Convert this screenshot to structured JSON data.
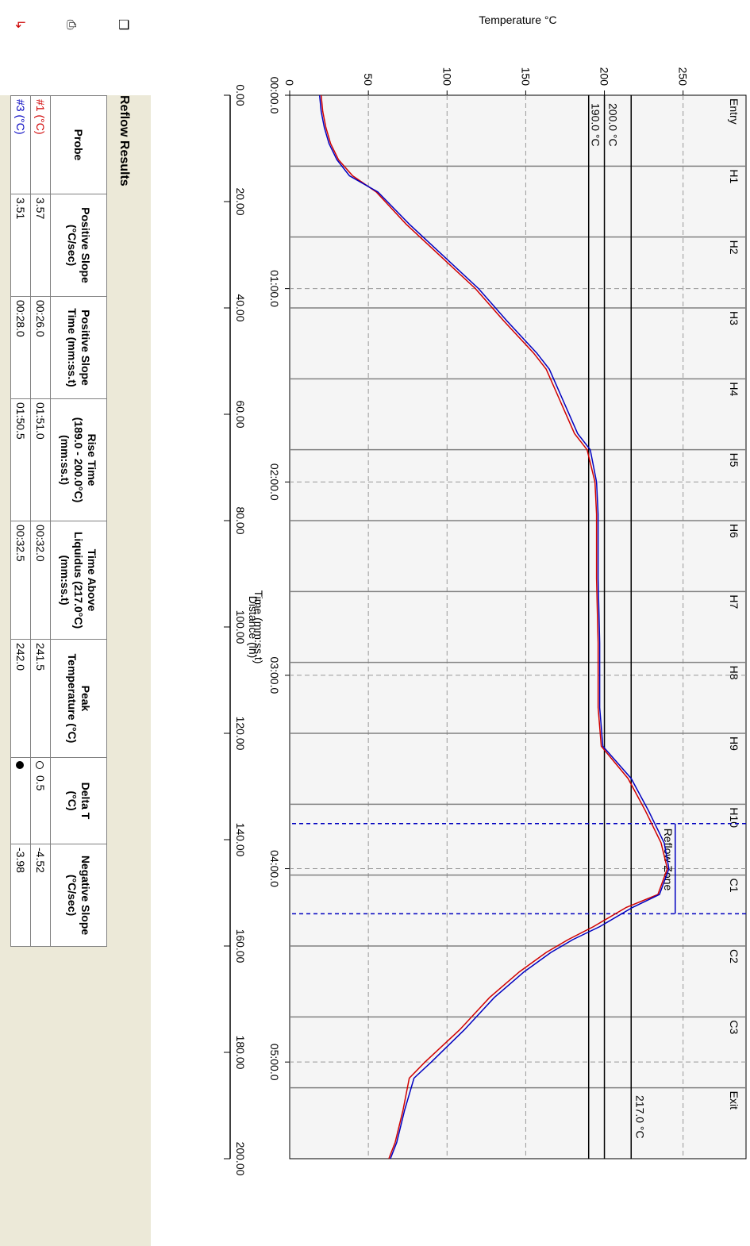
{
  "chart_data": {
    "type": "line",
    "ylabel": "Temperature °C",
    "xlabel_time": "Time (mm:ss.t)",
    "xlabel_distance": "Distance (in)",
    "ylim": [
      0,
      290
    ],
    "xlim_seconds": [
      0,
      330
    ],
    "y_ticks": [
      "0",
      "50",
      "100",
      "150",
      "200",
      "250"
    ],
    "time_ticks": [
      "00:00.0",
      "01:00.0",
      "02:00.0",
      "03:00.0",
      "04:00.0",
      "05:00.0"
    ],
    "distance_ticks": [
      "0.00",
      "20.00",
      "40.00",
      "60.00",
      "80.00",
      "100.00",
      "120.00",
      "140.00",
      "160.00",
      "180.00",
      "200.00"
    ],
    "zones": [
      "Entry",
      "H1",
      "H2",
      "H3",
      "H4",
      "H5",
      "H6",
      "H7",
      "H8",
      "H9",
      "H10",
      "C1",
      "C2",
      "C3",
      "Exit"
    ],
    "reference_lines": [
      "217.0 °C",
      "200.0 °C",
      "190.0 °C"
    ],
    "reflow_zone_label": "Reflow Zone",
    "series": [
      {
        "name": "#1 (°C)",
        "color": "#d00000",
        "x": [
          0,
          5,
          10,
          15,
          20,
          25,
          30,
          40,
          50,
          60,
          70,
          80,
          85,
          95,
          105,
          110,
          120,
          130,
          150,
          170,
          190,
          202,
          212,
          222,
          232,
          240,
          248,
          252,
          258,
          262,
          266,
          272,
          280,
          290,
          300,
          305,
          315,
          325,
          330
        ],
        "values": [
          20,
          21,
          23,
          26,
          31,
          40,
          55,
          74,
          96,
          118,
          136,
          155,
          163,
          172,
          181,
          189,
          194,
          195,
          195,
          196,
          196,
          198,
          215,
          226,
          236,
          240,
          234,
          214,
          193,
          177,
          163,
          146,
          127,
          108,
          86,
          76,
          72,
          67,
          63
        ]
      },
      {
        "name": "#3 (°C)",
        "color": "#0000c0",
        "x": [
          0,
          5,
          10,
          15,
          20,
          25,
          30,
          40,
          50,
          60,
          70,
          80,
          85,
          95,
          105,
          110,
          120,
          130,
          150,
          170,
          190,
          202,
          212,
          222,
          232,
          240,
          248,
          252,
          258,
          262,
          266,
          272,
          280,
          290,
          300,
          305,
          315,
          325,
          330
        ],
        "values": [
          19,
          20,
          22,
          25,
          30,
          38,
          56,
          76,
          98,
          120,
          138,
          157,
          165,
          174,
          183,
          191,
          195,
          196,
          196,
          197,
          197,
          199,
          217,
          228,
          238,
          241,
          235,
          218,
          197,
          180,
          166,
          149,
          130,
          111,
          90,
          79,
          73,
          68,
          64
        ]
      }
    ]
  },
  "reflow_results": {
    "title": "Reflow Results",
    "headers": [
      [
        "Probe"
      ],
      [
        "Positive Slope",
        "(°C/sec)"
      ],
      [
        "Positive Slope",
        "Time (mm:ss.t)"
      ],
      [
        "Rise Time",
        "(189.0 - 200.0°C)",
        "(mm:ss.t)"
      ],
      [
        "Time Above",
        "Liquidus (217.0°C)",
        "(mm:ss.t)"
      ],
      [
        "Peak",
        "Temperature (°C)"
      ],
      [
        "Delta T",
        "(°C)"
      ],
      [
        "Negative Slope",
        "(°C/sec)"
      ]
    ],
    "rows": [
      {
        "probe": "#1 (°C)",
        "probe_color": "#d00000",
        "pos_slope": "3.57",
        "pos_slope_time": "00:26.0",
        "rise_time": "01:51.0",
        "tal": "00:32.0",
        "peak": "241.5",
        "delta": "0.5",
        "neg_slope": "-4.52"
      },
      {
        "probe": "#3 (°C)",
        "probe_color": "#0000c0",
        "pos_slope": "3.51",
        "pos_slope_time": "00:28.0",
        "rise_time": "01:50.5",
        "tal": "00:32.5",
        "peak": "242.0",
        "delta": "",
        "neg_slope": "-3.98"
      }
    ]
  }
}
